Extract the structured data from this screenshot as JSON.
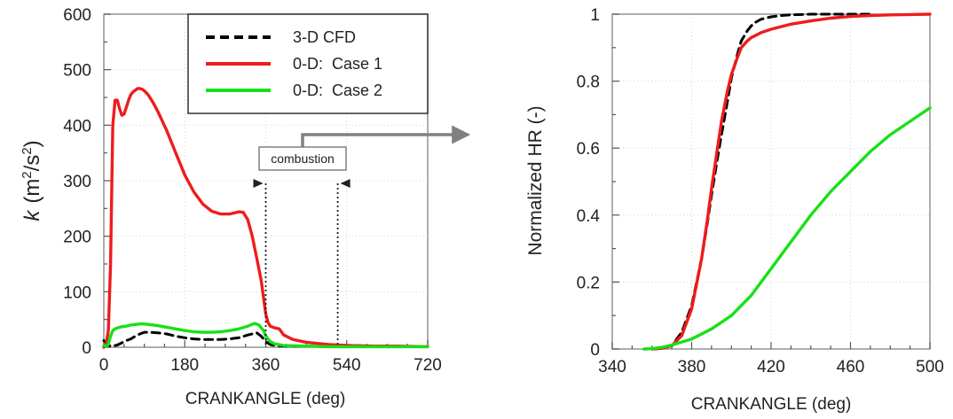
{
  "chart_data": [
    {
      "type": "line",
      "xlabel": "CRANKANGLE (deg)",
      "ylabel_symbol": "k",
      "ylabel_units": "(m",
      "ylabel_exp1": "2",
      "ylabel_slash": "/s",
      "ylabel_exp2": "2",
      "ylabel_close": ")",
      "xlim": [
        0,
        720
      ],
      "ylim": [
        0,
        600
      ],
      "xticks": [
        0,
        180,
        360,
        540,
        720
      ],
      "yticks": [
        0,
        100,
        200,
        300,
        400,
        500,
        600
      ],
      "legend": [
        "3-D CFD",
        "0-D:  Case 1",
        "0-D:  Case 2"
      ],
      "legend_position": "top-right",
      "annotation": "combustion",
      "combustion_window": [
        360,
        520
      ],
      "series": [
        {
          "name": "3-D CFD",
          "color": "#000000",
          "dash": true,
          "x": [
            0,
            5,
            10,
            15,
            20,
            30,
            40,
            50,
            60,
            70,
            80,
            90,
            100,
            120,
            140,
            160,
            180,
            200,
            220,
            240,
            260,
            280,
            300,
            320,
            340,
            350,
            360,
            370,
            380,
            400,
            450,
            500,
            550,
            600,
            650,
            720
          ],
          "y": [
            12,
            8,
            4,
            2,
            2,
            4,
            8,
            12,
            15,
            20,
            24,
            27,
            27,
            26,
            24,
            20,
            17,
            15,
            14,
            14,
            14,
            15,
            17,
            22,
            26,
            20,
            10,
            5,
            3,
            2,
            2,
            1,
            1,
            1,
            1,
            1
          ]
        },
        {
          "name": "0-D:  Case 1",
          "color": "#ee1c1c",
          "dash": false,
          "x": [
            0,
            5,
            10,
            15,
            20,
            25,
            30,
            35,
            40,
            45,
            50,
            55,
            60,
            65,
            70,
            75,
            80,
            85,
            90,
            95,
            100,
            110,
            120,
            140,
            160,
            180,
            200,
            220,
            240,
            260,
            280,
            300,
            310,
            320,
            330,
            340,
            350,
            360,
            365,
            370,
            380,
            390,
            400,
            420,
            450,
            500,
            550,
            600,
            650,
            720
          ],
          "y": [
            0,
            5,
            30,
            150,
            400,
            445,
            445,
            430,
            418,
            420,
            432,
            445,
            455,
            460,
            463,
            466,
            466,
            465,
            462,
            458,
            453,
            440,
            425,
            390,
            350,
            310,
            280,
            258,
            245,
            240,
            240,
            244,
            243,
            230,
            200,
            160,
            120,
            60,
            45,
            38,
            35,
            33,
            22,
            14,
            9,
            5,
            3,
            2,
            2,
            1
          ]
        },
        {
          "name": "0-D:  Case 2",
          "color": "#18e018",
          "dash": false,
          "x": [
            0,
            5,
            10,
            15,
            20,
            25,
            30,
            40,
            50,
            60,
            70,
            80,
            90,
            100,
            120,
            140,
            160,
            180,
            200,
            220,
            240,
            260,
            280,
            300,
            320,
            335,
            345,
            355,
            360,
            370,
            380,
            400,
            450,
            500,
            550,
            600,
            650,
            720
          ],
          "y": [
            3,
            2,
            5,
            20,
            30,
            33,
            35,
            37,
            38,
            40,
            41,
            42,
            42,
            41,
            39,
            36,
            33,
            30,
            28,
            27,
            27,
            28,
            30,
            33,
            38,
            43,
            40,
            30,
            20,
            10,
            6,
            3,
            2,
            1,
            1,
            1,
            1,
            1
          ]
        }
      ]
    },
    {
      "type": "line",
      "xlabel": "CRANKANGLE (deg)",
      "ylabel": "Normalized HR (-)",
      "xlim": [
        340,
        500
      ],
      "ylim": [
        0,
        1
      ],
      "xticks": [
        340,
        380,
        420,
        460,
        500
      ],
      "yticks": [
        0,
        0.2,
        0.4,
        0.6,
        0.8,
        1
      ],
      "series": [
        {
          "name": "3-D CFD",
          "color": "#000000",
          "dash": true,
          "x": [
            360,
            365,
            370,
            375,
            380,
            385,
            388,
            390,
            393,
            395,
            398,
            400,
            403,
            405,
            408,
            410,
            412,
            415,
            420,
            425,
            430,
            440,
            450,
            460,
            470
          ],
          "y": [
            0,
            0.002,
            0.01,
            0.05,
            0.13,
            0.27,
            0.38,
            0.46,
            0.57,
            0.64,
            0.74,
            0.81,
            0.88,
            0.92,
            0.95,
            0.965,
            0.975,
            0.985,
            0.992,
            0.996,
            0.998,
            1,
            1,
            1,
            1
          ]
        },
        {
          "name": "0-D:  Case 1",
          "color": "#ee1c1c",
          "dash": false,
          "x": [
            360,
            365,
            370,
            375,
            380,
            385,
            388,
            390,
            393,
            395,
            398,
            400,
            403,
            405,
            408,
            410,
            415,
            420,
            430,
            440,
            450,
            460,
            470,
            480,
            490,
            500
          ],
          "y": [
            0,
            0.002,
            0.01,
            0.04,
            0.12,
            0.27,
            0.39,
            0.48,
            0.6,
            0.68,
            0.77,
            0.82,
            0.87,
            0.9,
            0.92,
            0.93,
            0.945,
            0.955,
            0.97,
            0.98,
            0.988,
            0.993,
            0.996,
            0.998,
            0.999,
            1
          ]
        },
        {
          "name": "0-D:  Case 2",
          "color": "#18e018",
          "dash": false,
          "x": [
            356,
            360,
            365,
            370,
            380,
            390,
            400,
            410,
            415,
            420,
            430,
            440,
            450,
            460,
            470,
            480,
            490,
            500
          ],
          "y": [
            0,
            0.001,
            0.005,
            0.012,
            0.03,
            0.06,
            0.1,
            0.16,
            0.2,
            0.24,
            0.32,
            0.4,
            0.47,
            0.53,
            0.59,
            0.64,
            0.68,
            0.72
          ]
        }
      ]
    }
  ]
}
